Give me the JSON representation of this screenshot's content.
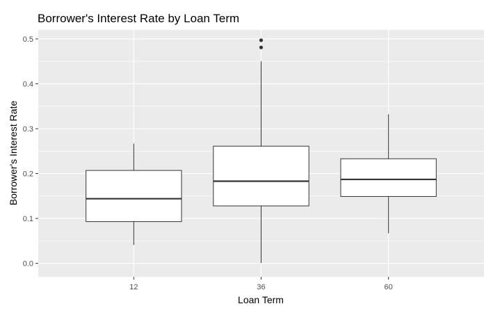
{
  "chart_data": {
    "type": "boxplot",
    "title": "Borrower's Interest Rate by Loan Term",
    "xlabel": "Loan Term",
    "ylabel": "Borrower's Interest Rate",
    "categories": [
      "12",
      "36",
      "60"
    ],
    "ylim": [
      -0.03,
      0.52
    ],
    "yticks": [
      "0.0",
      "0.1",
      "0.2",
      "0.3",
      "0.4",
      "0.5"
    ],
    "ytick_values": [
      0.0,
      0.1,
      0.2,
      0.3,
      0.4,
      0.5
    ],
    "grid": true,
    "legend": "none",
    "boxes": [
      {
        "category": "12",
        "whisker_low": 0.041,
        "q1": 0.093,
        "median": 0.144,
        "q3": 0.207,
        "whisker_high": 0.267,
        "outliers": []
      },
      {
        "category": "36",
        "whisker_low": 0.001,
        "q1": 0.128,
        "median": 0.183,
        "q3": 0.261,
        "whisker_high": 0.45,
        "outliers": [
          0.481,
          0.497
        ]
      },
      {
        "category": "60",
        "whisker_low": 0.067,
        "q1": 0.149,
        "median": 0.187,
        "q3": 0.233,
        "whisker_high": 0.332,
        "outliers": []
      }
    ],
    "colors": {
      "panel_background": "#ebebeb",
      "grid_major": "#ffffff",
      "box_fill": "#ffffff",
      "box_stroke": "#333333"
    }
  }
}
